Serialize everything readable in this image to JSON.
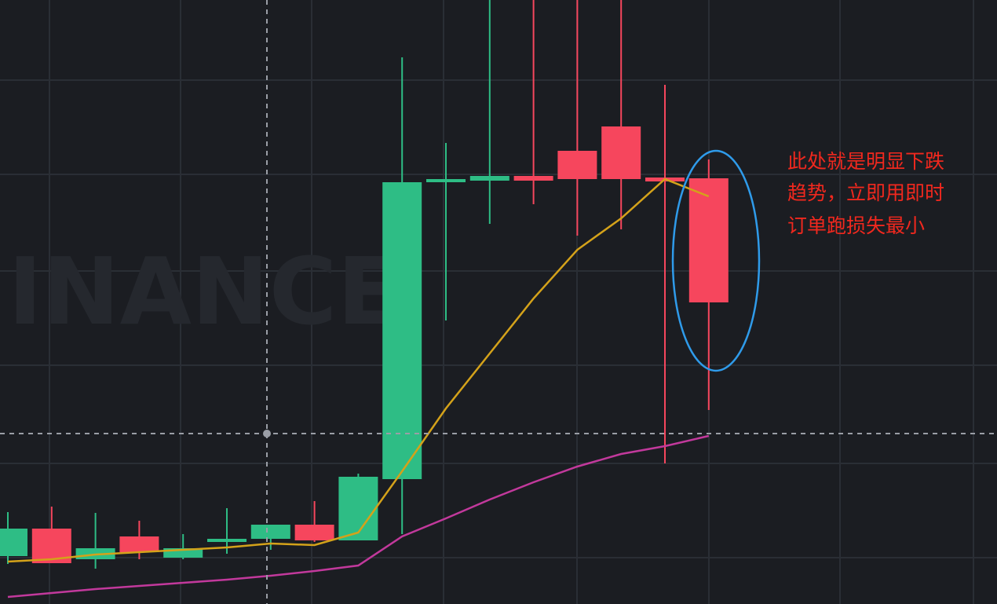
{
  "chart_data": {
    "type": "candlestick",
    "watermark": "INANCE",
    "annotation": [
      "此处就是明显下跌",
      "趋势，立即用即时",
      "订单跑损失最小"
    ],
    "categories": [
      null,
      null,
      null,
      null,
      null,
      null,
      null,
      null,
      null,
      null,
      null,
      null,
      null,
      null,
      null,
      null,
      null
    ],
    "ylim": [
      0,
      769
    ],
    "up_color": "#2ebd85",
    "down_color": "#f6465d",
    "open": [
      61,
      96,
      57,
      86,
      59,
      79,
      83,
      101,
      81,
      159,
      537,
      539,
      545,
      577,
      608,
      543,
      542
    ],
    "high": [
      117,
      124,
      116,
      106,
      89,
      122,
      101,
      131,
      166,
      696,
      587,
      769,
      769,
      769,
      769,
      661,
      566
    ],
    "low": [
      51,
      52,
      45,
      57,
      57,
      64,
      69,
      79,
      81,
      89,
      361,
      484,
      509,
      469,
      477,
      179,
      247
    ],
    "close": [
      96,
      52,
      71,
      66,
      71,
      83,
      101,
      81,
      162,
      537,
      541,
      545,
      539,
      541,
      541,
      538,
      384
    ],
    "lines": [
      {
        "color": "#d4a21a",
        "values": [
          54,
          57,
          63,
          66,
          69,
          72,
          77,
          75,
          91,
          169,
          249,
          319,
          389,
          451,
          491,
          541,
          519
        ]
      },
      {
        "color": "#c2399c",
        "values": [
          9,
          14,
          19,
          23,
          27,
          31,
          36,
          42,
          49,
          86,
          109,
          133,
          155,
          175,
          191,
          201,
          214
        ]
      }
    ]
  }
}
